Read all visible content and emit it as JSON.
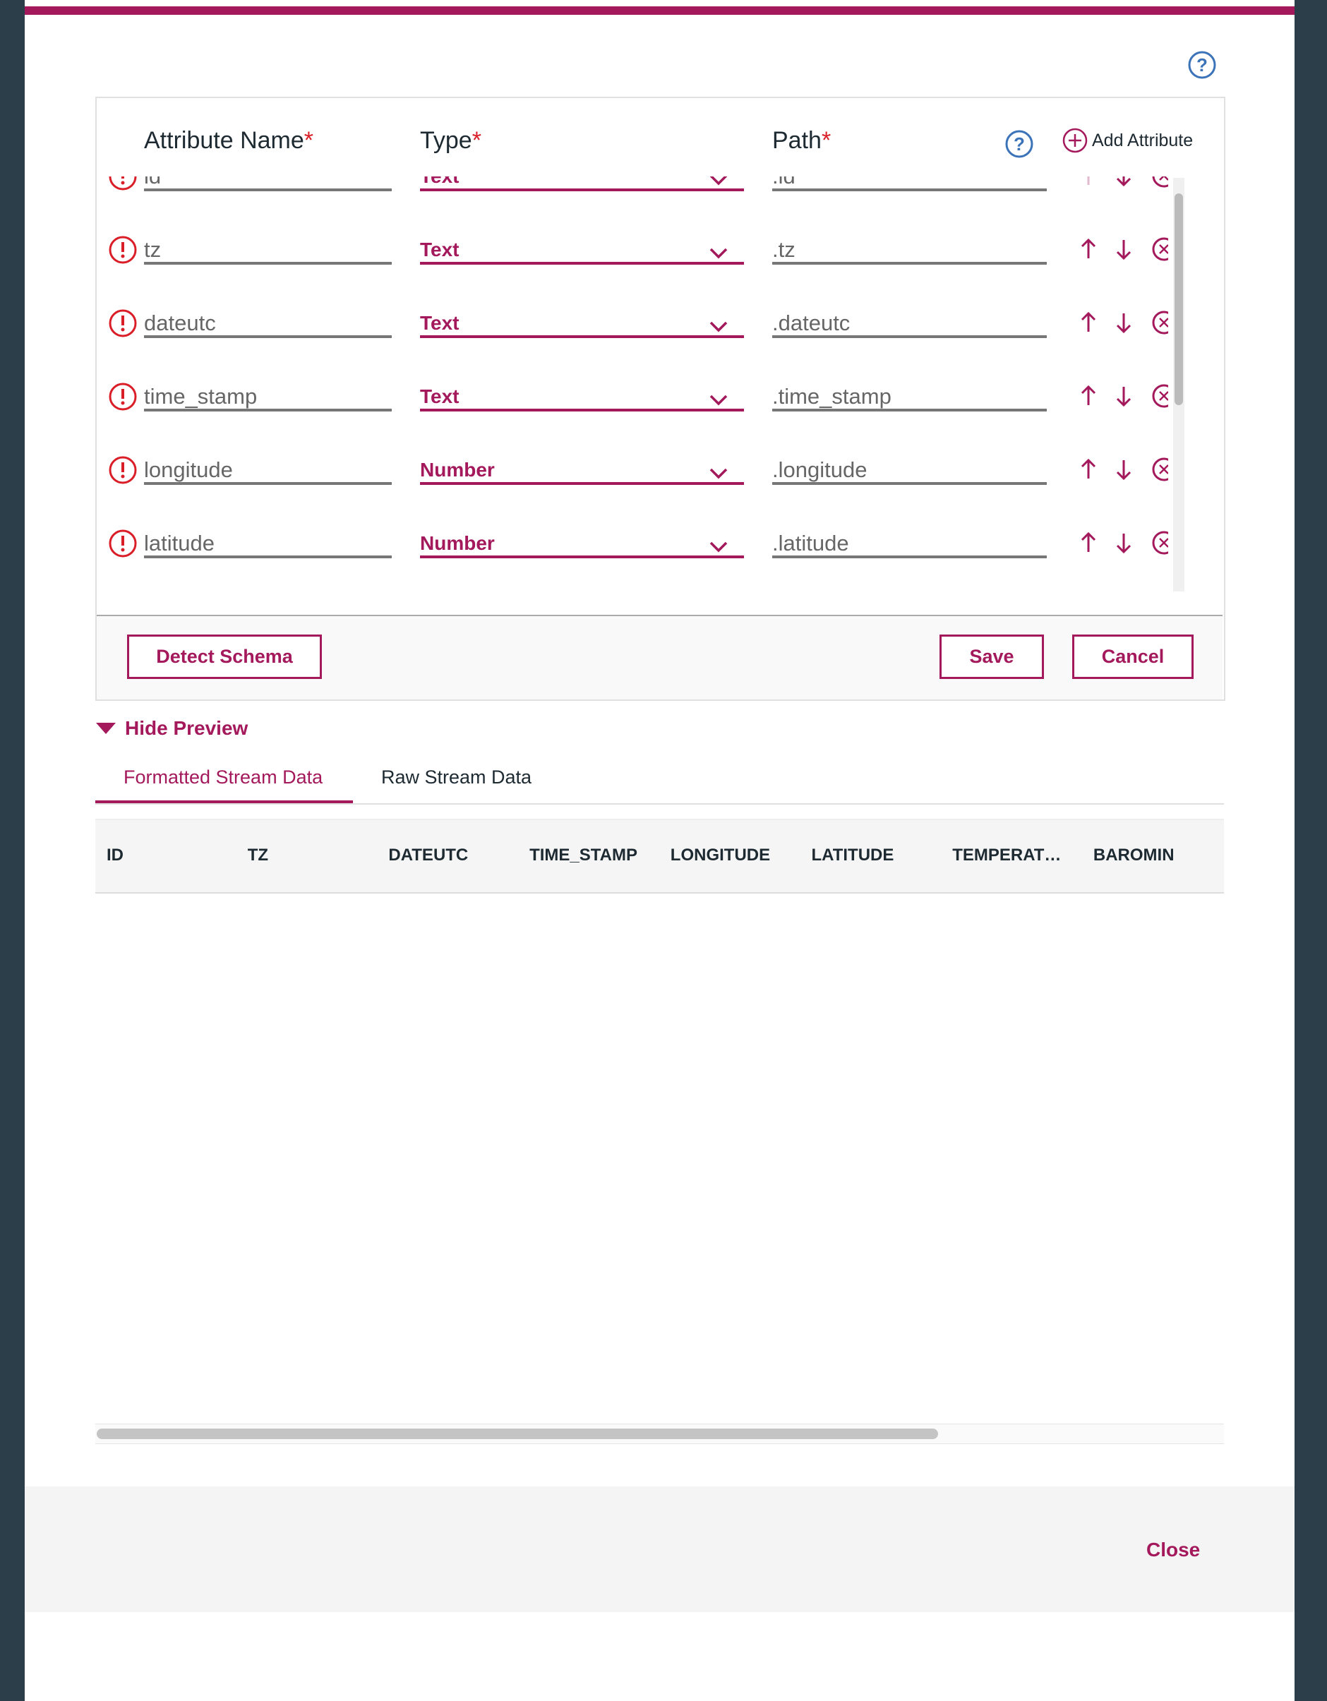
{
  "help_icon": "?",
  "attributes": {
    "headers": {
      "name": "Attribute Name",
      "type": "Type",
      "path": "Path",
      "required": "*"
    },
    "add_label": "Add Attribute",
    "rows": [
      {
        "name": "id",
        "type": "Text",
        "path": ".id"
      },
      {
        "name": "tz",
        "type": "Text",
        "path": ".tz"
      },
      {
        "name": "dateutc",
        "type": "Text",
        "path": ".dateutc"
      },
      {
        "name": "time_stamp",
        "type": "Text",
        "path": ".time_stamp"
      },
      {
        "name": "longitude",
        "type": "Number",
        "path": ".longitude"
      },
      {
        "name": "latitude",
        "type": "Number",
        "path": ".latitude"
      }
    ],
    "buttons": {
      "detect": "Detect Schema",
      "save": "Save",
      "cancel": "Cancel"
    }
  },
  "preview": {
    "toggle": "Hide Preview",
    "tabs": [
      "Formatted Stream Data",
      "Raw Stream Data"
    ],
    "columns": [
      "ID",
      "TZ",
      "DATEUTC",
      "TIME_STAMP",
      "LONGITUDE",
      "LATITUDE",
      "TEMPERAT…",
      "BAROMIN"
    ]
  },
  "footer": {
    "close": "Close"
  }
}
